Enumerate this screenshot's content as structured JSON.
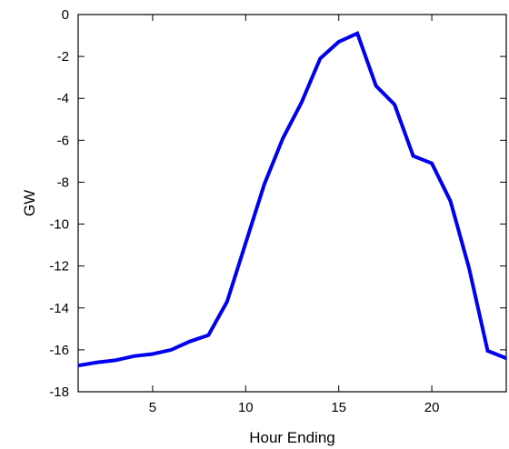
{
  "chart_data": {
    "type": "line",
    "title": "",
    "xlabel": "Hour Ending",
    "ylabel": "GW",
    "xlim": [
      1,
      24
    ],
    "ylim": [
      -18,
      0
    ],
    "xticks": [
      5,
      10,
      15,
      20
    ],
    "yticks": [
      0,
      -2,
      -4,
      -6,
      -8,
      -10,
      -12,
      -14,
      -16,
      -18
    ],
    "grid": false,
    "legend": "none",
    "series": [
      {
        "color": "#0000ee",
        "x": [
          1,
          2,
          3,
          4,
          5,
          6,
          7,
          8,
          9,
          10,
          11,
          12,
          13,
          14,
          15,
          16,
          17,
          18,
          19,
          20,
          21,
          22,
          23,
          24
        ],
        "values": [
          -16.75,
          -16.6,
          -16.5,
          -16.3,
          -16.2,
          -16.0,
          -15.6,
          -15.3,
          -13.7,
          -10.9,
          -8.1,
          -5.9,
          -4.2,
          -2.1,
          -1.3,
          -0.9,
          -3.4,
          -4.3,
          -6.75,
          -7.1,
          -8.9,
          -12.1,
          -16.05,
          -16.4
        ]
      }
    ]
  }
}
